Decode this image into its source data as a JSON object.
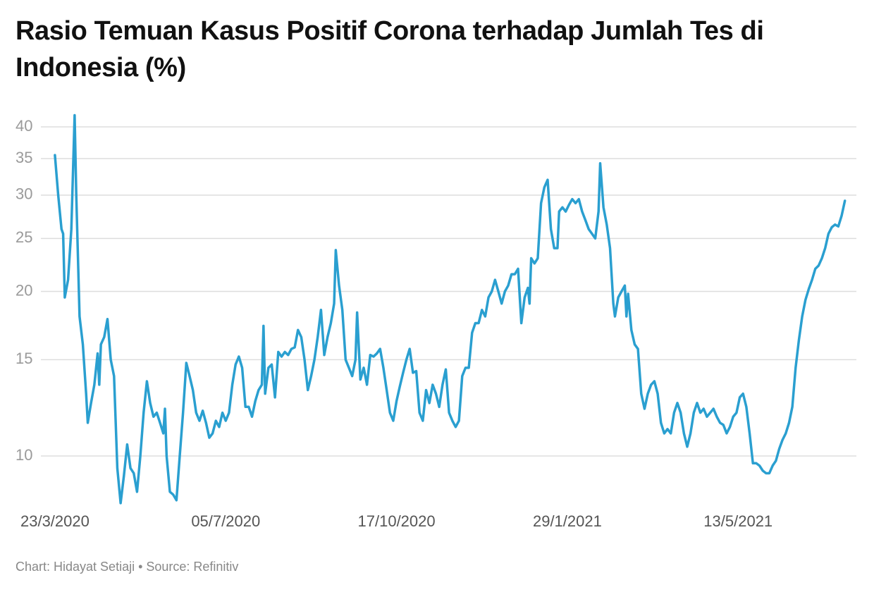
{
  "chart_data": {
    "type": "line",
    "title": "Rasio Temuan Kasus Positif Corona terhadap Jumlah Tes di Indonesia (%)",
    "source": "Chart: Hidayat Setiaji • Source: Refinitiv",
    "color": "#2a9fd0",
    "log_scale": true,
    "grid": true,
    "ylim": [
      8,
      43
    ],
    "yticks": [
      10,
      15,
      20,
      25,
      30,
      35,
      40
    ],
    "xlim": [
      "2020-02-28",
      "2021-07-24"
    ],
    "xticks": [
      {
        "value": "2020-03-23",
        "label": "23/3/2020"
      },
      {
        "value": "2020-07-05",
        "label": "05/7/2020"
      },
      {
        "value": "2020-10-17",
        "label": "17/10/2020"
      },
      {
        "value": "2021-01-29",
        "label": "29/1/2021"
      },
      {
        "value": "2021-05-13",
        "label": "13/5/2021"
      }
    ],
    "x": [
      "2020-03-23",
      "2020-03-25",
      "2020-03-27",
      "2020-03-28",
      "2020-03-29",
      "2020-03-31",
      "2020-04-02",
      "2020-04-04",
      "2020-04-05",
      "2020-04-07",
      "2020-04-09",
      "2020-04-11",
      "2020-04-12",
      "2020-04-14",
      "2020-04-16",
      "2020-04-18",
      "2020-04-19",
      "2020-04-20",
      "2020-04-22",
      "2020-04-24",
      "2020-04-26",
      "2020-04-28",
      "2020-04-30",
      "2020-05-02",
      "2020-05-04",
      "2020-05-06",
      "2020-05-08",
      "2020-05-10",
      "2020-05-12",
      "2020-05-14",
      "2020-05-16",
      "2020-05-18",
      "2020-05-20",
      "2020-05-22",
      "2020-05-24",
      "2020-05-26",
      "2020-05-28",
      "2020-05-29",
      "2020-05-30",
      "2020-06-01",
      "2020-06-03",
      "2020-06-05",
      "2020-06-07",
      "2020-06-09",
      "2020-06-11",
      "2020-06-13",
      "2020-06-15",
      "2020-06-17",
      "2020-06-19",
      "2020-06-21",
      "2020-06-23",
      "2020-06-25",
      "2020-06-27",
      "2020-06-29",
      "2020-07-01",
      "2020-07-03",
      "2020-07-05",
      "2020-07-07",
      "2020-07-09",
      "2020-07-11",
      "2020-07-13",
      "2020-07-15",
      "2020-07-17",
      "2020-07-19",
      "2020-07-21",
      "2020-07-23",
      "2020-07-25",
      "2020-07-27",
      "2020-07-28",
      "2020-07-29",
      "2020-07-31",
      "2020-08-02",
      "2020-08-04",
      "2020-08-06",
      "2020-08-08",
      "2020-08-10",
      "2020-08-12",
      "2020-08-14",
      "2020-08-16",
      "2020-08-18",
      "2020-08-20",
      "2020-08-22",
      "2020-08-24",
      "2020-08-26",
      "2020-08-28",
      "2020-08-30",
      "2020-09-01",
      "2020-09-03",
      "2020-09-05",
      "2020-09-07",
      "2020-09-09",
      "2020-09-10",
      "2020-09-12",
      "2020-09-14",
      "2020-09-16",
      "2020-09-18",
      "2020-09-20",
      "2020-09-22",
      "2020-09-23",
      "2020-09-25",
      "2020-09-27",
      "2020-09-29",
      "2020-10-01",
      "2020-10-03",
      "2020-10-05",
      "2020-10-07",
      "2020-10-09",
      "2020-10-11",
      "2020-10-13",
      "2020-10-15",
      "2020-10-17",
      "2020-10-19",
      "2020-10-21",
      "2020-10-23",
      "2020-10-25",
      "2020-10-27",
      "2020-10-29",
      "2020-10-31",
      "2020-11-02",
      "2020-11-04",
      "2020-11-06",
      "2020-11-08",
      "2020-11-10",
      "2020-11-12",
      "2020-11-14",
      "2020-11-16",
      "2020-11-18",
      "2020-11-20",
      "2020-11-22",
      "2020-11-24",
      "2020-11-26",
      "2020-11-28",
      "2020-11-30",
      "2020-12-02",
      "2020-12-04",
      "2020-12-06",
      "2020-12-08",
      "2020-12-10",
      "2020-12-12",
      "2020-12-14",
      "2020-12-16",
      "2020-12-18",
      "2020-12-20",
      "2020-12-22",
      "2020-12-24",
      "2020-12-26",
      "2020-12-28",
      "2020-12-30",
      "2021-01-01",
      "2021-01-03",
      "2021-01-05",
      "2021-01-06",
      "2021-01-07",
      "2021-01-09",
      "2021-01-11",
      "2021-01-13",
      "2021-01-15",
      "2021-01-17",
      "2021-01-19",
      "2021-01-21",
      "2021-01-23",
      "2021-01-24",
      "2021-01-26",
      "2021-01-28",
      "2021-01-30",
      "2021-02-01",
      "2021-02-03",
      "2021-02-05",
      "2021-02-07",
      "2021-02-09",
      "2021-02-11",
      "2021-02-13",
      "2021-02-15",
      "2021-02-17",
      "2021-02-18",
      "2021-02-20",
      "2021-02-22",
      "2021-02-24",
      "2021-02-26",
      "2021-02-27",
      "2021-03-01",
      "2021-03-03",
      "2021-03-05",
      "2021-03-06",
      "2021-03-07",
      "2021-03-09",
      "2021-03-11",
      "2021-03-13",
      "2021-03-15",
      "2021-03-17",
      "2021-03-19",
      "2021-03-21",
      "2021-03-23",
      "2021-03-25",
      "2021-03-27",
      "2021-03-29",
      "2021-03-31",
      "2021-04-02",
      "2021-04-04",
      "2021-04-06",
      "2021-04-08",
      "2021-04-10",
      "2021-04-12",
      "2021-04-14",
      "2021-04-16",
      "2021-04-18",
      "2021-04-20",
      "2021-04-22",
      "2021-04-24",
      "2021-04-26",
      "2021-04-28",
      "2021-04-30",
      "2021-05-02",
      "2021-05-04",
      "2021-05-06",
      "2021-05-08",
      "2021-05-10",
      "2021-05-12",
      "2021-05-14",
      "2021-05-16",
      "2021-05-18",
      "2021-05-20",
      "2021-05-22",
      "2021-05-24",
      "2021-05-26",
      "2021-05-28",
      "2021-05-30",
      "2021-06-01",
      "2021-06-03",
      "2021-06-05",
      "2021-06-07",
      "2021-06-09",
      "2021-06-11",
      "2021-06-13",
      "2021-06-15",
      "2021-06-17",
      "2021-06-19",
      "2021-06-21",
      "2021-06-23",
      "2021-06-25",
      "2021-06-27",
      "2021-06-29",
      "2021-07-01",
      "2021-07-03",
      "2021-07-05",
      "2021-07-07",
      "2021-07-09",
      "2021-07-11",
      "2021-07-13",
      "2021-07-15",
      "2021-07-17"
    ],
    "values": [
      35.5,
      30,
      26,
      25.5,
      19.5,
      21,
      26,
      42,
      30,
      18,
      16,
      13,
      11.5,
      12.5,
      13.5,
      15.4,
      13.5,
      16,
      16.5,
      17.8,
      15,
      14,
      9.5,
      8.2,
      9.2,
      10.5,
      9.5,
      9.3,
      8.6,
      10,
      12,
      13.7,
      12.5,
      11.8,
      12,
      11.5,
      11,
      12.2,
      10,
      8.6,
      8.5,
      8.3,
      10,
      12,
      14.8,
      14,
      13.2,
      12,
      11.6,
      12.1,
      11.5,
      10.8,
      11,
      11.6,
      11.3,
      12,
      11.6,
      12,
      13.5,
      14.7,
      15.2,
      14.5,
      12.3,
      12.3,
      11.8,
      12.6,
      13.2,
      13.5,
      17.3,
      13,
      14.5,
      14.7,
      12.8,
      15.5,
      15.2,
      15.5,
      15.3,
      15.7,
      15.8,
      17,
      16.5,
      15,
      13.2,
      14,
      15,
      16.5,
      18.5,
      15.3,
      16.5,
      17.5,
      19,
      23.8,
      20.5,
      18.5,
      15,
      14.5,
      14,
      15,
      18.3,
      13.8,
      14.5,
      13.5,
      15.3,
      15.2,
      15.4,
      15.7,
      14.5,
      13.2,
      12,
      11.6,
      12.6,
      13.4,
      14.2,
      15,
      15.7,
      14.2,
      14.3,
      12,
      11.6,
      13.2,
      12.5,
      13.5,
      13,
      12.3,
      13.5,
      14.4,
      12,
      11.6,
      11.3,
      11.6,
      14,
      14.5,
      14.5,
      16.8,
      17.5,
      17.5,
      18.5,
      18,
      19.5,
      20,
      21,
      20,
      19,
      20,
      20.5,
      21.5,
      21.5,
      22,
      17.5,
      19.5,
      20.3,
      19,
      23,
      22.5,
      23,
      29,
      31,
      32,
      26,
      24,
      24,
      28,
      28.5,
      28,
      28.8,
      29.5,
      29,
      29.5,
      28,
      27,
      26,
      25.5,
      25,
      28,
      34.3,
      28.5,
      26.5,
      24,
      19,
      18,
      19.5,
      20,
      20.5,
      18,
      19.8,
      17,
      16,
      15.7,
      13,
      12.2,
      13,
      13.5,
      13.7,
      13,
      11.5,
      11,
      11.2,
      11,
      12,
      12.5,
      12,
      11,
      10.4,
      11,
      12,
      12.5,
      12,
      12.2,
      11.8,
      12,
      12.2,
      11.8,
      11.5,
      11.4,
      11,
      11.3,
      11.8,
      12,
      12.8,
      13,
      12.3,
      11,
      9.7,
      9.7,
      9.6,
      9.4,
      9.3,
      9.3,
      9.6,
      9.8,
      10.3,
      10.7,
      11,
      11.5,
      12.3,
      14.5,
      16.3,
      18,
      19.3,
      20.2,
      21,
      22,
      22.3,
      23,
      24,
      25.5,
      26.2,
      26.5,
      26.3,
      27.5,
      29.3
    ]
  }
}
